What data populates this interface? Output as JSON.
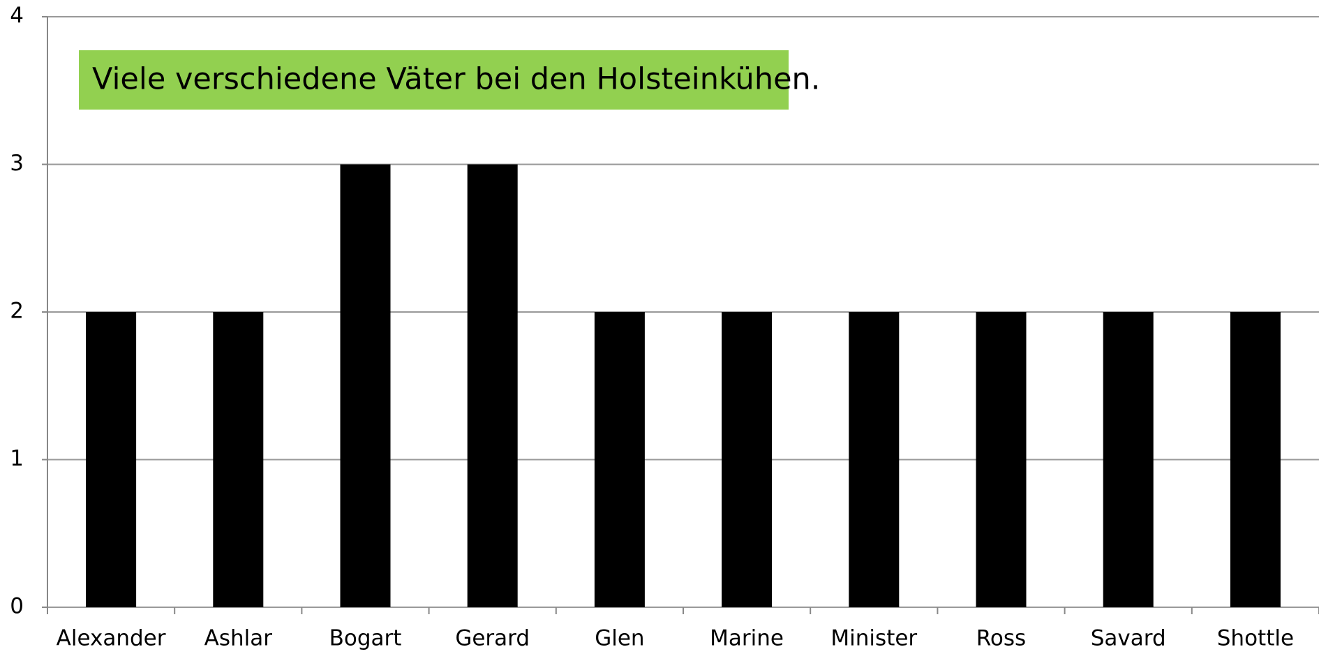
{
  "chart_data": {
    "type": "bar",
    "title": "Viele verschiedene Väter bei den Holsteinkühen.",
    "categories": [
      "Alexander",
      "Ashlar",
      "Bogart",
      "Gerard",
      "Glen",
      "Marine",
      "Minister",
      "Ross",
      "Savard",
      "Shottle"
    ],
    "values": [
      2,
      2,
      3,
      3,
      2,
      2,
      2,
      2,
      2,
      2
    ],
    "color": "#000000",
    "ylim": [
      0,
      4
    ],
    "yticks": [
      0,
      1,
      2,
      3,
      4
    ],
    "grid": true
  }
}
